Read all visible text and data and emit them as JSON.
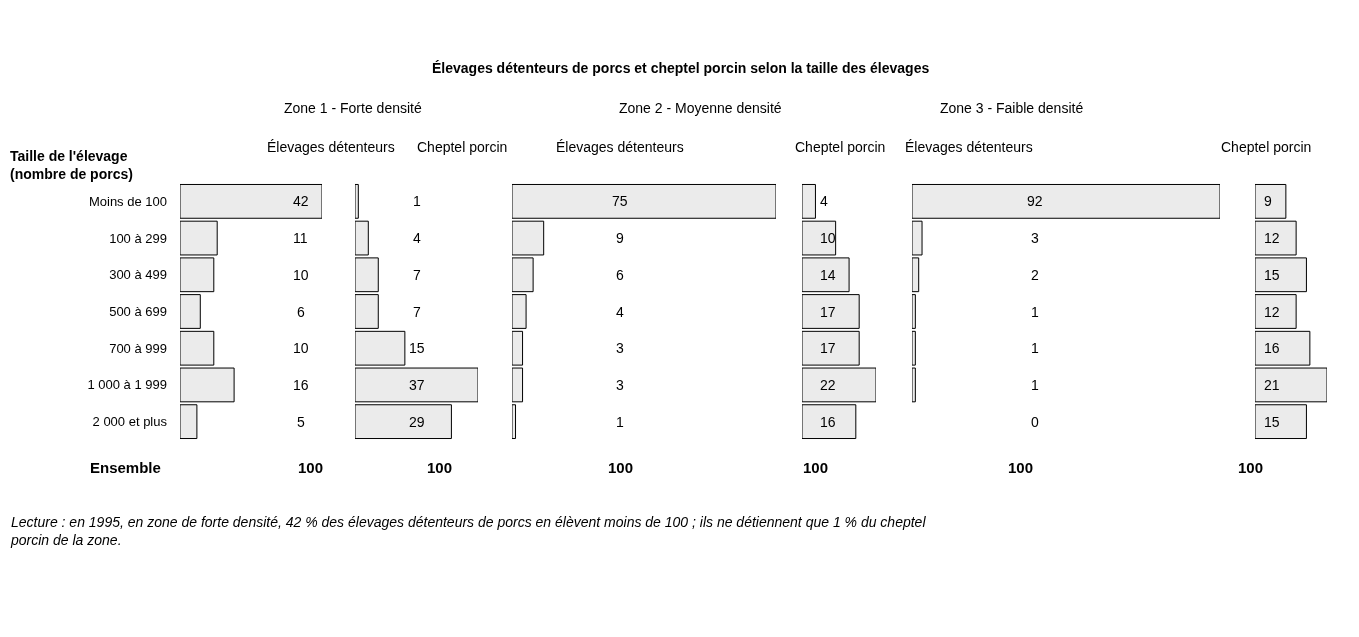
{
  "chart_data": [
    {
      "type": "bar",
      "orientation": "horizontal",
      "subtitle": "Zone 1 - Forte densité",
      "xlabel": "Élevages détenteurs",
      "ylabel": "Taille de l'élevage\n(nombre de porcs)",
      "categories": [
        "Moins de 100",
        "100 à 299",
        "300 à 499",
        "500 à 699",
        "700 à 999",
        "1 000 à 1 999",
        "2 000 et plus"
      ],
      "values": [
        42,
        11,
        10,
        6,
        10,
        16,
        5
      ],
      "color": "#ebebeb",
      "data_labels": true,
      "tick_labels": "y",
      "legend": false,
      "annotations": [
        "100",
        "Ensemble",
        "Lecture : en 1995, en zone de forte densité, 42 % des élevages détenteurs de porcs en élèvent moins de 100 ; ils ne détiennent que 1 % du cheptel porcin de la zone."
      ]
    },
    {
      "type": "bar",
      "orientation": "horizontal",
      "xlabel": "Cheptel porcin",
      "categories": [
        null,
        null,
        null,
        null,
        null,
        null,
        null
      ],
      "values": [
        1,
        4,
        7,
        7,
        15,
        37,
        29
      ],
      "color": "#ebebeb",
      "data_labels": true,
      "annotations": [
        "100"
      ],
      "tick_labels": false,
      "legend": false
    },
    {
      "type": "bar",
      "orientation": "horizontal",
      "title": "Élevages détenteurs de porcs et cheptel porcin selon la taille des élevages",
      "subtitle": "Zone 2 - Moyenne densité",
      "xlabel": "Élevages détenteurs",
      "categories": [
        null,
        null,
        null,
        null,
        null,
        null,
        null
      ],
      "values": [
        75,
        9,
        6,
        4,
        3,
        3,
        1
      ],
      "color": "#ebebeb",
      "data_labels": true,
      "annotations": [
        "100"
      ],
      "tick_labels": false,
      "legend": false
    },
    {
      "type": "bar",
      "orientation": "horizontal",
      "xlabel": "Cheptel porcin",
      "categories": [
        null,
        null,
        null,
        null,
        null,
        null,
        null
      ],
      "values": [
        4,
        10,
        14,
        17,
        17,
        22,
        16
      ],
      "color": "#ebebeb",
      "data_labels": true,
      "annotations": [
        "100"
      ],
      "tick_labels": false,
      "legend": false
    },
    {
      "type": "bar",
      "orientation": "horizontal",
      "subtitle": "Zone 3 - Faible densité",
      "xlabel": "Élevages détenteurs",
      "categories": [
        null,
        null,
        null,
        null,
        null,
        null,
        null
      ],
      "values": [
        92,
        3,
        2,
        1,
        1,
        1,
        0
      ],
      "color": "#ebebeb",
      "data_labels": true,
      "annotations": [
        "100"
      ],
      "tick_labels": false,
      "legend": false
    },
    {
      "type": "bar",
      "orientation": "horizontal",
      "xlabel": "Cheptel porcin",
      "categories": [
        null,
        null,
        null,
        null,
        null,
        null,
        null
      ],
      "values": [
        9,
        12,
        15,
        12,
        16,
        21,
        15
      ],
      "color": "#ebebeb",
      "data_labels": true,
      "annotations": [
        "100"
      ],
      "tick_labels": false,
      "legend": false
    }
  ]
}
